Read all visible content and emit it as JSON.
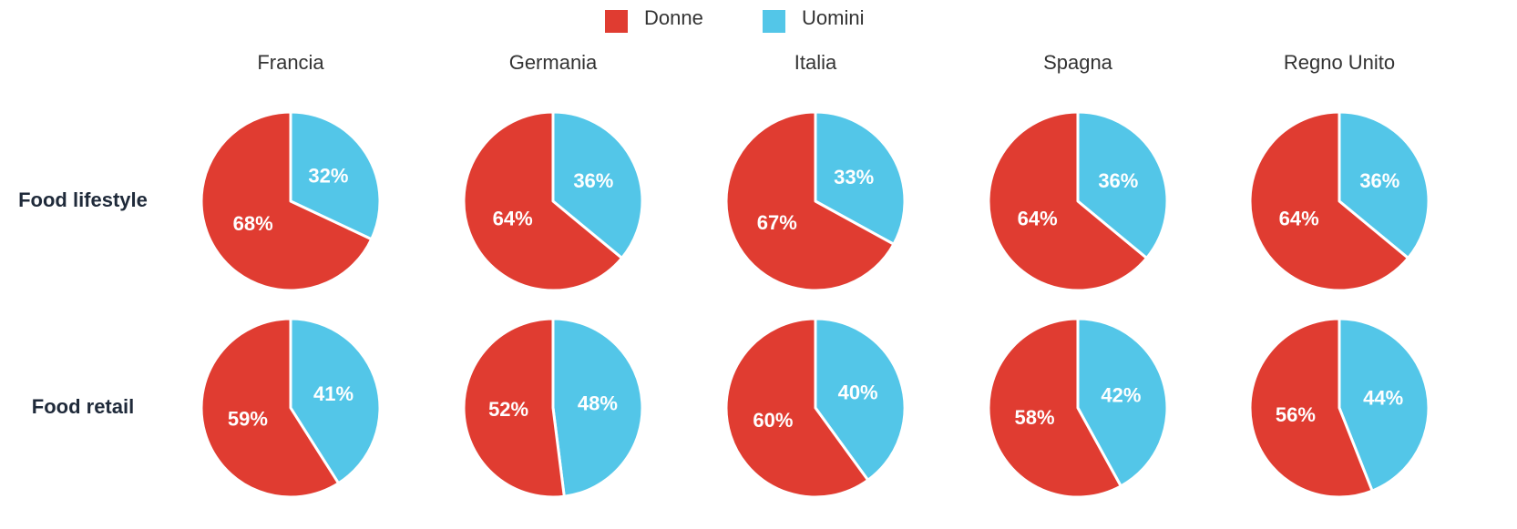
{
  "chart_data": {
    "type": "pie",
    "columns": [
      "Francia",
      "Germania",
      "Italia",
      "Spagna",
      "Regno Unito"
    ],
    "rows": [
      "Food lifestyle",
      "Food retail"
    ],
    "series": [
      {
        "name": "Donne",
        "color": "#e03c31",
        "values": [
          [
            68,
            64,
            67,
            64,
            64
          ],
          [
            59,
            52,
            60,
            58,
            56
          ]
        ],
        "value_labels": [
          [
            "68%",
            "64%",
            "67%",
            "64%",
            "64%"
          ],
          [
            "59%",
            "52%",
            "60%",
            "58%",
            "56%"
          ]
        ]
      },
      {
        "name": "Uomini",
        "color": "#53c6e8",
        "values": [
          [
            32,
            36,
            33,
            36,
            36
          ],
          [
            41,
            48,
            40,
            42,
            44
          ]
        ],
        "value_labels": [
          [
            "32%",
            "36%",
            "33%",
            "36%",
            "36%"
          ],
          [
            "41%",
            "48%",
            "40%",
            "42%",
            "44%"
          ]
        ]
      }
    ]
  }
}
